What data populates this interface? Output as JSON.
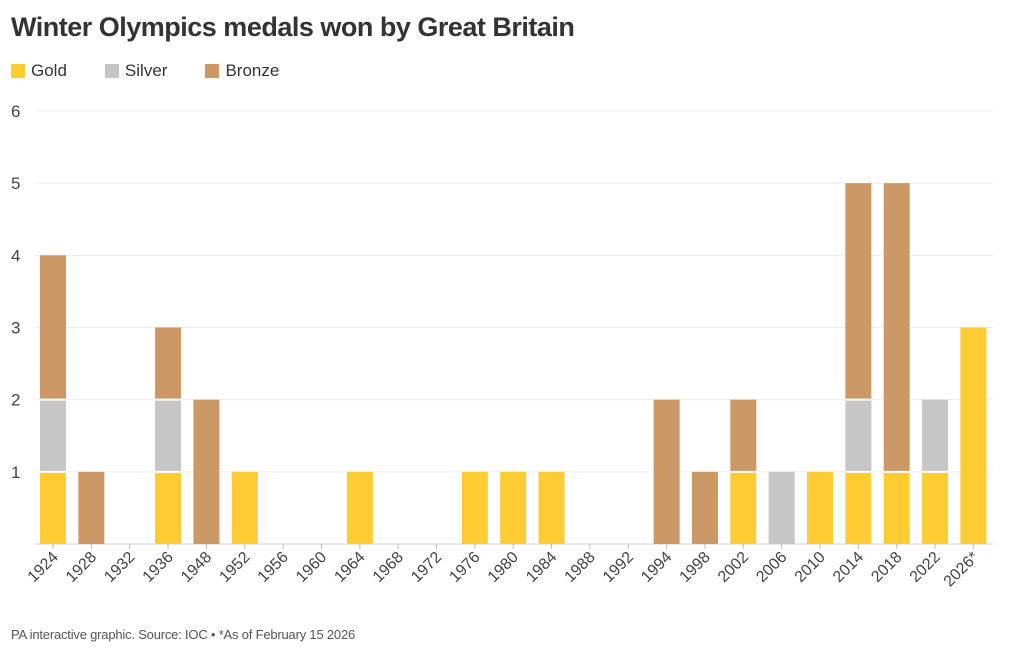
{
  "chart_data": {
    "type": "bar",
    "stacked": true,
    "title": "Winter Olympics medals won by Great Britain",
    "categories": [
      "1924",
      "1928",
      "1932",
      "1936",
      "1948",
      "1952",
      "1956",
      "1960",
      "1964",
      "1968",
      "1972",
      "1976",
      "1980",
      "1984",
      "1988",
      "1992",
      "1994",
      "1998",
      "2002",
      "2006",
      "2010",
      "2014",
      "2018",
      "2022",
      "2026*"
    ],
    "series": [
      {
        "name": "Gold",
        "color": "#ffcc33",
        "values": [
          1,
          0,
          0,
          1,
          0,
          1,
          0,
          0,
          1,
          0,
          0,
          1,
          1,
          1,
          0,
          0,
          0,
          0,
          1,
          0,
          1,
          1,
          1,
          1,
          3
        ]
      },
      {
        "name": "Silver",
        "color": "#c6c6c6",
        "values": [
          1,
          0,
          0,
          1,
          0,
          0,
          0,
          0,
          0,
          0,
          0,
          0,
          0,
          0,
          0,
          0,
          0,
          0,
          0,
          1,
          0,
          1,
          0,
          1,
          0
        ]
      },
      {
        "name": "Bronze",
        "color": "#cc9966",
        "values": [
          2,
          1,
          0,
          1,
          2,
          0,
          0,
          0,
          0,
          0,
          0,
          0,
          0,
          0,
          0,
          0,
          2,
          1,
          1,
          0,
          0,
          3,
          4,
          0,
          0
        ]
      }
    ],
    "yticks": [
      1,
      2,
      3,
      4,
      5,
      6
    ],
    "ylim": [
      0,
      6
    ],
    "xlabel": "",
    "ylabel": "",
    "grid": true,
    "legend_position": "top-left"
  },
  "footer": "PA interactive graphic. Source: IOC • *As of February 15 2026"
}
